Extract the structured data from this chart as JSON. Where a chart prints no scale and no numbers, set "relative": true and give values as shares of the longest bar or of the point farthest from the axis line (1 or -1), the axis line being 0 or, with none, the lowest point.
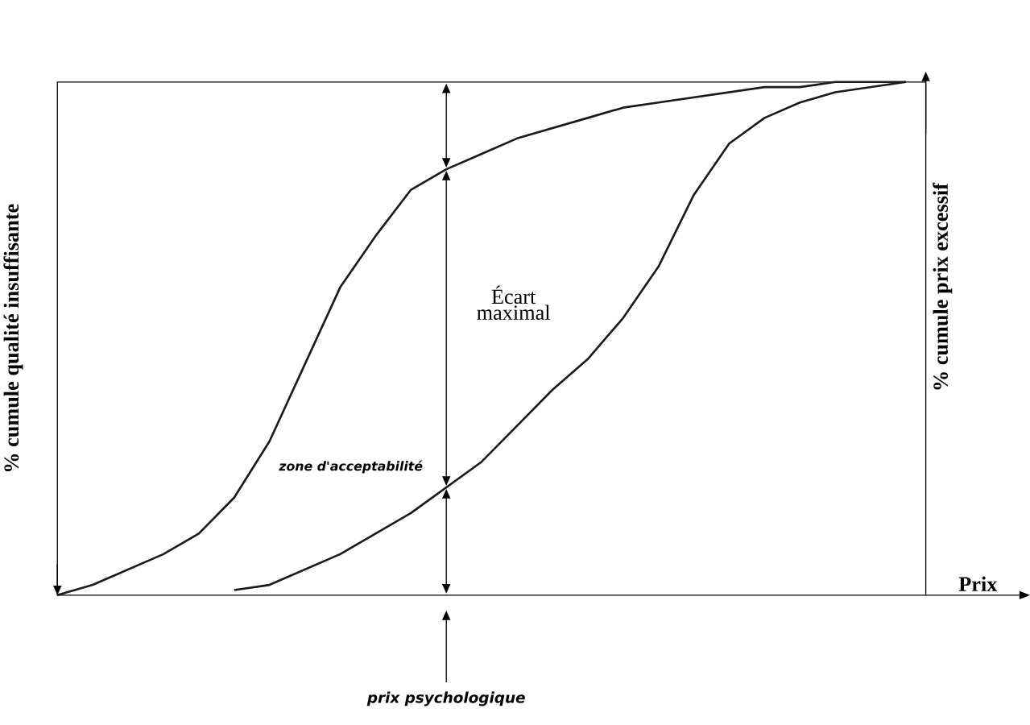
{
  "chart_data": {
    "type": "line",
    "relative": true,
    "xlabel": "Prix",
    "ylabel": "% cumule qualité insuffisante",
    "y2label": "% cumule prix excessif",
    "categories": [
      null,
      null,
      null,
      null,
      null,
      null,
      null,
      null,
      null,
      null,
      null,
      null,
      null,
      null,
      null,
      null,
      null,
      null,
      null,
      null,
      null,
      null,
      null,
      null,
      null
    ],
    "series": [
      {
        "color": "#1a1a1a",
        "values": [
          0,
          0.02,
          0.05,
          0.08,
          0.12,
          0.19,
          0.3,
          0.45,
          0.6,
          0.7,
          0.79,
          0.83,
          0.86,
          0.89,
          0.91,
          0.93,
          0.95,
          0.96,
          0.97,
          0.98,
          0.99,
          0.99,
          1.0,
          1.0,
          1
        ]
      },
      {
        "color": "#1a1a1a",
        "values": [
          null,
          null,
          null,
          null,
          null,
          0.01,
          0.02,
          0.05,
          0.08,
          0.12,
          0.16,
          0.21,
          0.26,
          0.33,
          0.4,
          0.46,
          0.54,
          0.64,
          0.78,
          0.88,
          0.93,
          0.96,
          0.98,
          0.99,
          1
        ]
      }
    ],
    "annotations": [
      "Écart maximal",
      "zone d'acceptabilité",
      "prix psychologique"
    ]
  }
}
